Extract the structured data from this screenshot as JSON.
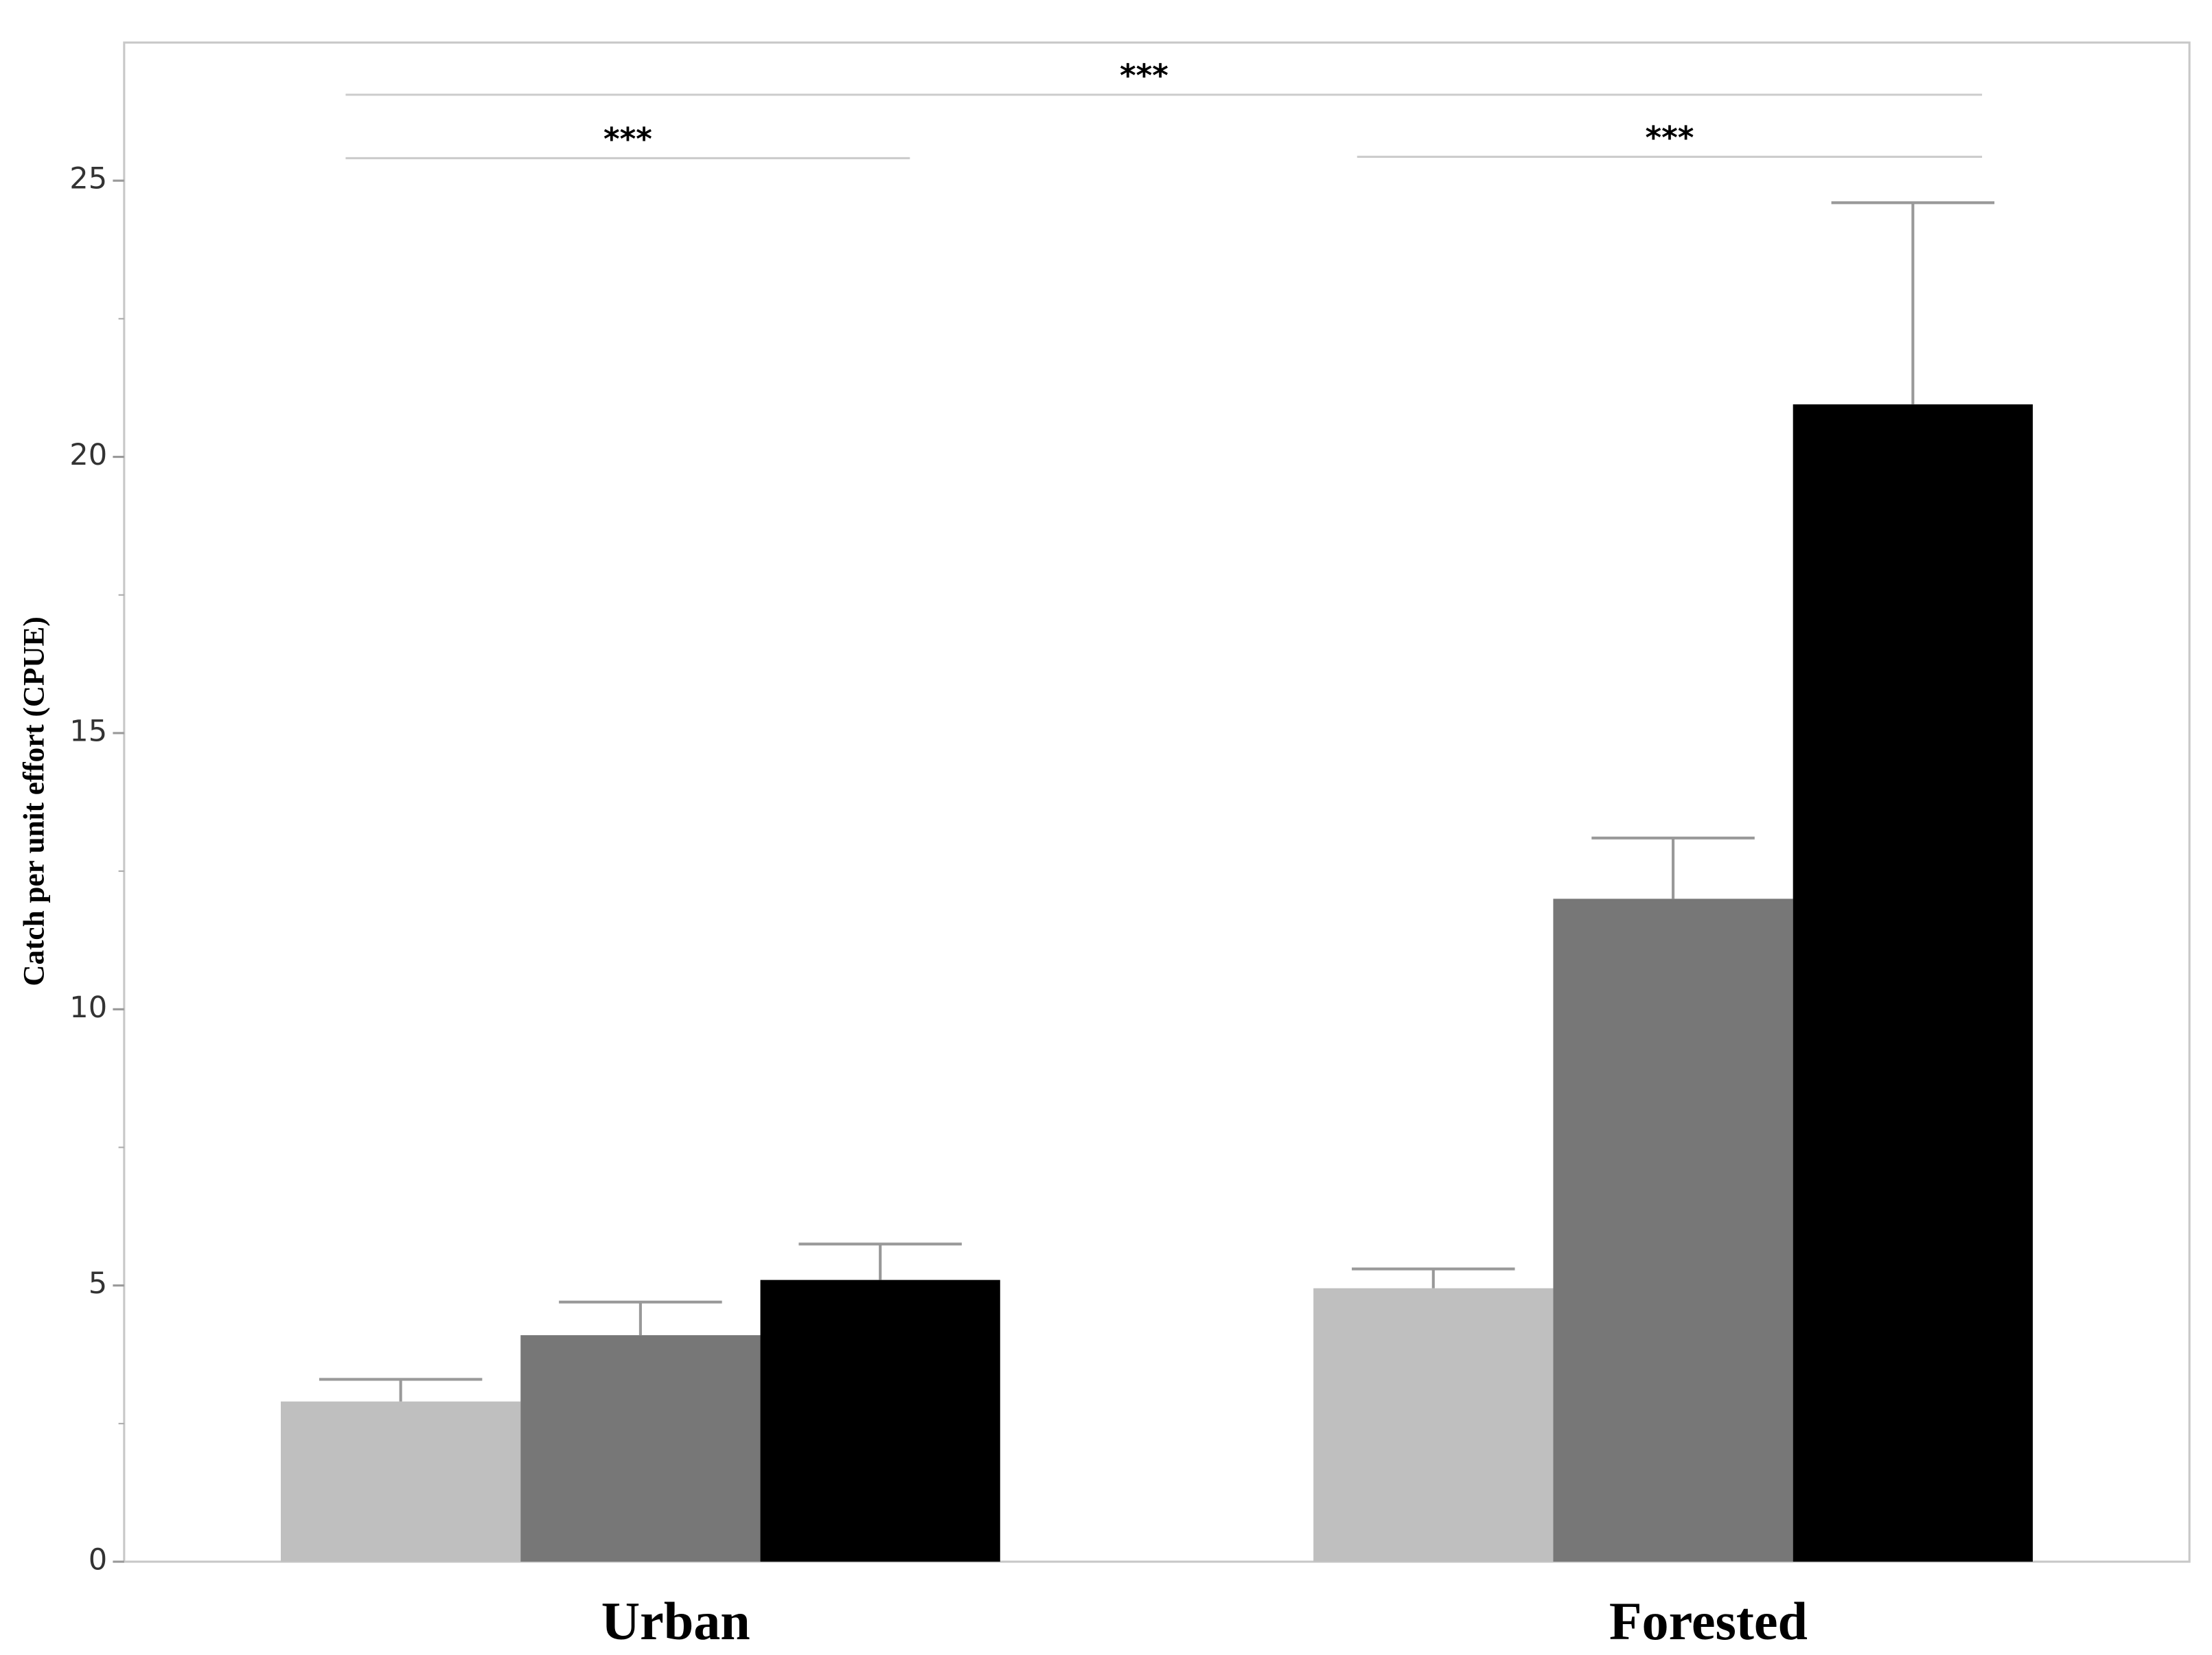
{
  "chart_data": {
    "type": "bar",
    "y_label": "Catch per unit effort (CPUE)",
    "categories": [
      "Urban",
      "Forested"
    ],
    "series": [
      {
        "color": "#bfbfbf",
        "values": [
          2.9,
          4.95
        ],
        "errors": [
          0.4,
          0.35
        ]
      },
      {
        "color": "#777777",
        "values": [
          4.1,
          12.0
        ],
        "errors": [
          0.6,
          1.1
        ]
      },
      {
        "color": "#000000",
        "values": [
          5.1,
          20.95
        ],
        "errors": [
          0.65,
          3.65
        ]
      }
    ],
    "ylim": [
      0,
      27.5
    ],
    "yticks": [
      0,
      5,
      10,
      15,
      20,
      25
    ],
    "yminorticks": [
      2.5,
      7.5,
      12.5,
      17.5,
      22.5
    ],
    "annotations": [
      {
        "text": "***"
      },
      {
        "text": "***"
      },
      {
        "text": "***"
      }
    ]
  }
}
